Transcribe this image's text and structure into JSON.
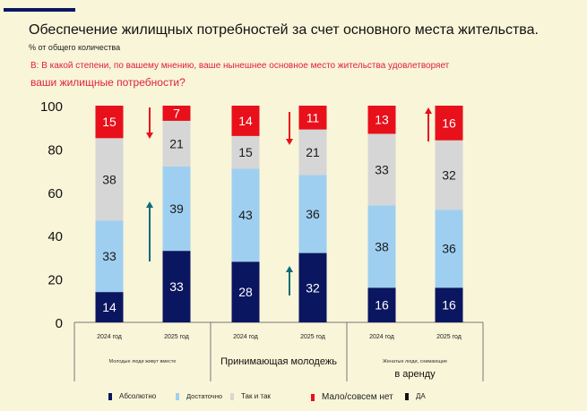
{
  "header": {
    "title": "Обеспечение жилищных потребностей за счет основного места жительства.",
    "subtitle": "% от общего количества",
    "question_line1": "В: В какой степени, по вашему мнению, ваше нынешнее основное место жительства удовлетворяет",
    "question_line2": "ваши жилищные потребности?"
  },
  "chart_data": {
    "type": "bar",
    "stacked": true,
    "ylim": [
      0,
      100
    ],
    "yticks": [
      "0",
      "20",
      "40",
      "60",
      "80",
      "100"
    ],
    "groups": [
      {
        "label": "Молодые люди живут вместе",
        "categories": [
          "2024 год",
          "2025 год"
        ]
      },
      {
        "label": "Принимающая молодежь",
        "categories": [
          "2024 год",
          "2025 год"
        ]
      },
      {
        "label": "Женатые люди, снимающие в аренду",
        "label_line1": "Женатые люди, снимающие",
        "label_line2": "в аренду",
        "categories": [
          "2024 год",
          "2025 год"
        ]
      }
    ],
    "series": [
      {
        "name": "Абсолютно",
        "color": "#0b1660",
        "label_color": "#ffffff",
        "values": [
          14,
          33,
          28,
          32,
          16,
          16
        ]
      },
      {
        "name": "Достаточно",
        "color": "#9fcff0",
        "label_color": "#1a1a1a",
        "values": [
          33,
          39,
          43,
          36,
          38,
          36
        ]
      },
      {
        "name": "Так и так",
        "color": "#d6d6d6",
        "label_color": "#1a1a1a",
        "values": [
          38,
          21,
          15,
          21,
          33,
          32
        ]
      },
      {
        "name": "Мало/совсем нет",
        "color": "#e8101a",
        "label_color": "#ffffff",
        "values": [
          15,
          7,
          14,
          11,
          13,
          16
        ]
      }
    ],
    "extra_legend": [
      {
        "name": "ДА",
        "color": "#111111"
      }
    ],
    "annotations": [
      {
        "type": "arrow-down",
        "color": "#e8101a",
        "group": 0
      },
      {
        "type": "arrow-up",
        "color": "#0f6a78",
        "group": 0
      },
      {
        "type": "arrow-down",
        "color": "#e8101a",
        "group": 1
      },
      {
        "type": "arrow-up",
        "color": "#0f6a78",
        "group": 1
      },
      {
        "type": "arrow-up",
        "color": "#e8101a",
        "group": 2
      }
    ],
    "grid": false,
    "legend_placement": "bottom"
  }
}
